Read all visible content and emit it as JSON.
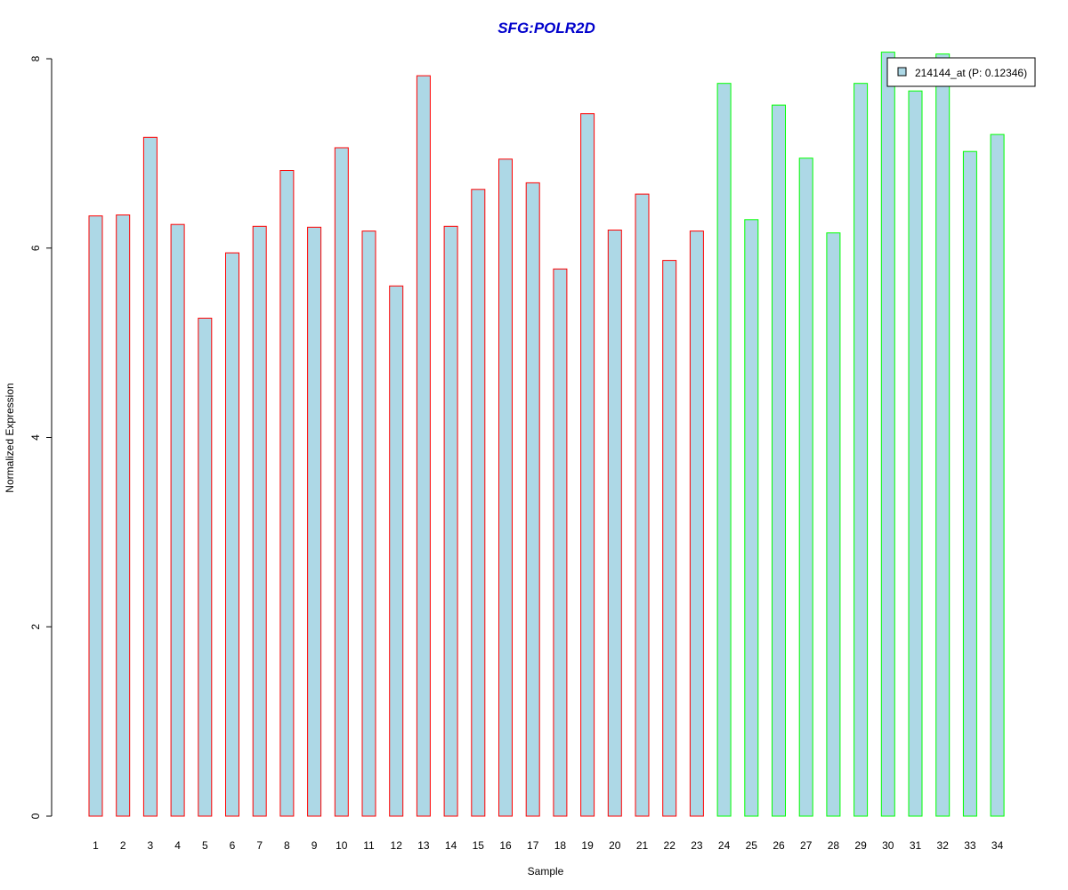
{
  "chart_data": {
    "type": "bar",
    "title": "SFG:POLR2D",
    "xlabel": "Sample",
    "ylabel": "Normalized Expression",
    "categories": [
      "1",
      "2",
      "3",
      "4",
      "5",
      "6",
      "7",
      "8",
      "9",
      "10",
      "11",
      "12",
      "13",
      "14",
      "15",
      "16",
      "17",
      "18",
      "19",
      "20",
      "21",
      "22",
      "23",
      "24",
      "25",
      "26",
      "27",
      "28",
      "29",
      "30",
      "31",
      "32",
      "33",
      "34"
    ],
    "values": [
      6.34,
      6.35,
      7.17,
      6.25,
      5.26,
      5.95,
      6.23,
      6.82,
      6.22,
      7.06,
      6.18,
      5.6,
      7.82,
      6.23,
      6.62,
      6.94,
      6.69,
      5.78,
      7.42,
      6.19,
      6.57,
      5.87,
      6.18,
      7.74,
      6.3,
      7.51,
      6.95,
      6.16,
      7.74,
      8.07,
      7.66,
      8.05,
      7.02,
      7.2
    ],
    "groups": [
      1,
      1,
      1,
      1,
      1,
      1,
      1,
      1,
      1,
      1,
      1,
      1,
      1,
      1,
      1,
      1,
      1,
      1,
      1,
      1,
      1,
      1,
      1,
      2,
      2,
      2,
      2,
      2,
      2,
      2,
      2,
      2,
      2,
      2
    ],
    "ylim": [
      0,
      8
    ],
    "yticks": [
      0,
      2,
      4,
      6,
      8
    ],
    "grid": false,
    "legend": {
      "position": "top-right",
      "entries": [
        {
          "label": "214144_at (P: 0.12346)"
        }
      ]
    },
    "colors": {
      "fill": "#add8e6",
      "group1_border": "#ff0000",
      "group2_border": "#00ff00",
      "title": "#0000cc"
    }
  }
}
